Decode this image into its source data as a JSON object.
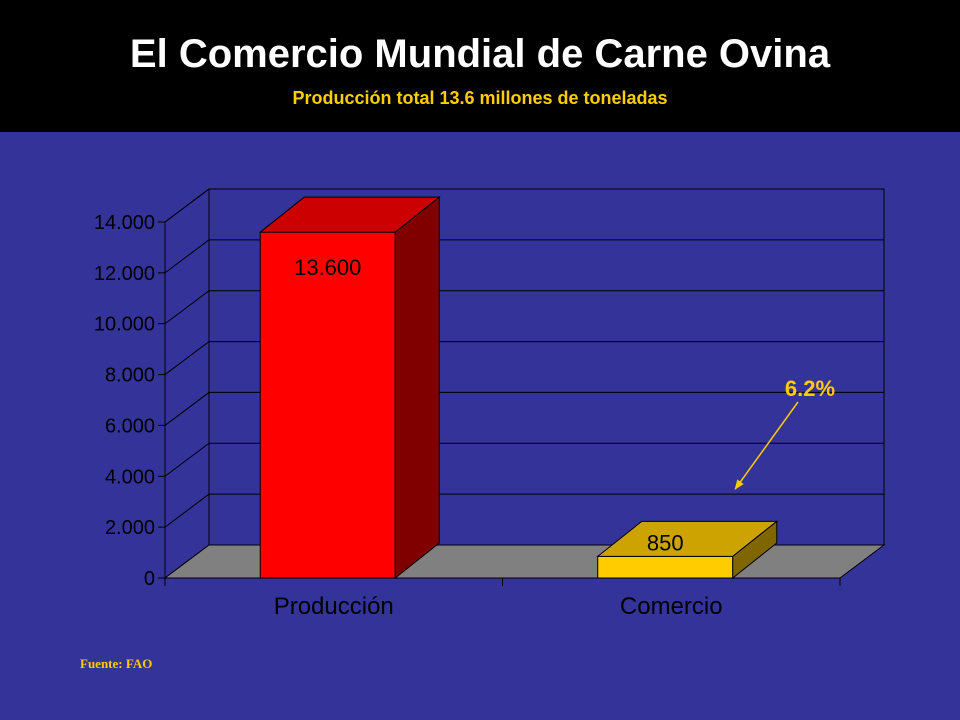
{
  "header": {
    "title": "El Comercio Mundial de Carne Ovina",
    "subtitle": "Producción total 13.6 millones de toneladas"
  },
  "chart_data": {
    "type": "bar",
    "categories": [
      "Producción",
      "Comercio"
    ],
    "values": [
      13600,
      850
    ],
    "data_labels": [
      "13.600",
      "850"
    ],
    "ylim": [
      0,
      14000
    ],
    "y_ticks": [
      0,
      2000,
      4000,
      6000,
      8000,
      10000,
      12000,
      14000
    ],
    "y_tick_labels": [
      "0",
      "2.000",
      "4.000",
      "6.000",
      "8.000",
      "10.000",
      "12.000",
      "14.000"
    ],
    "grid": true,
    "three_d": true,
    "bar_colors": [
      "#ff0000",
      "#ffcc00"
    ],
    "annotation": {
      "text": "6.2%",
      "points_to": "Comercio"
    }
  },
  "colors": {
    "background": "#333399",
    "header": "#000000",
    "accent": "#ffcc00",
    "floor": "#808080"
  },
  "footer": {
    "source": "Fuente: FAO"
  }
}
